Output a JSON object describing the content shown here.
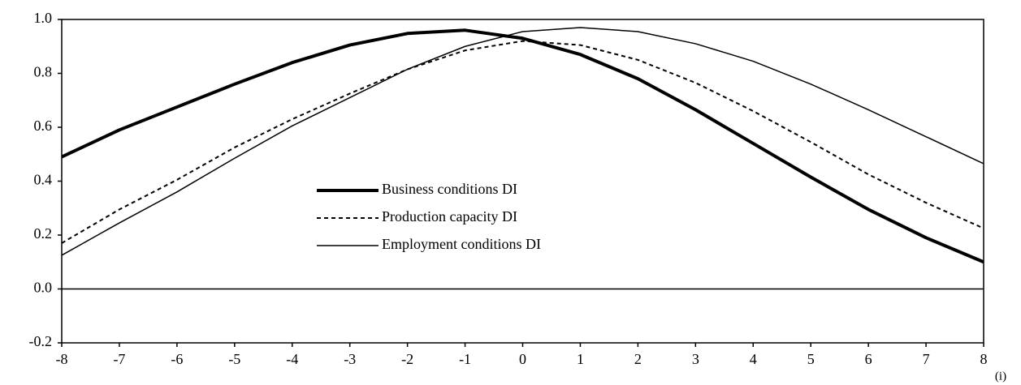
{
  "chart_data": {
    "type": "line",
    "x": [
      -8,
      -7,
      -6,
      -5,
      -4,
      -3,
      -2,
      -1,
      0,
      1,
      2,
      3,
      4,
      5,
      6,
      7,
      8
    ],
    "xlim": [
      -8,
      8
    ],
    "xticks": [
      -8,
      -7,
      -6,
      -5,
      -4,
      -3,
      -2,
      -1,
      0,
      1,
      2,
      3,
      4,
      5,
      6,
      7,
      8
    ],
    "xlabel": "(i)",
    "ylim": [
      -0.2,
      1.0
    ],
    "yticks": [
      {
        "value": -0.2,
        "label": "-0.2"
      },
      {
        "value": 0,
        "label": "0.0"
      },
      {
        "value": 0.2,
        "label": "0.2"
      },
      {
        "value": 0.4,
        "label": "0.4"
      },
      {
        "value": 0.6,
        "label": "0.6"
      },
      {
        "value": 0.8,
        "label": "0.8"
      },
      {
        "value": 1.0,
        "label": "1.0"
      }
    ],
    "grid": false,
    "series": [
      {
        "name": "Business conditions DI",
        "color": "#000000",
        "width": 4,
        "dash": "none",
        "values": [
          0.49,
          0.59,
          0.675,
          0.76,
          0.84,
          0.905,
          0.948,
          0.96,
          0.93,
          0.87,
          0.78,
          0.665,
          0.54,
          0.415,
          0.295,
          0.19,
          0.1
        ]
      },
      {
        "name": "Production capacity DI",
        "color": "#000000",
        "width": 2,
        "dash": "5,4",
        "values": [
          0.17,
          0.295,
          0.405,
          0.525,
          0.63,
          0.725,
          0.815,
          0.885,
          0.92,
          0.905,
          0.85,
          0.765,
          0.66,
          0.545,
          0.425,
          0.32,
          0.225
        ]
      },
      {
        "name": "Employment conditions DI",
        "color": "#000000",
        "width": 1.5,
        "dash": "none",
        "values": [
          0.125,
          0.245,
          0.36,
          0.485,
          0.605,
          0.71,
          0.815,
          0.9,
          0.955,
          0.97,
          0.955,
          0.91,
          0.845,
          0.76,
          0.665,
          0.565,
          0.465
        ]
      }
    ]
  }
}
